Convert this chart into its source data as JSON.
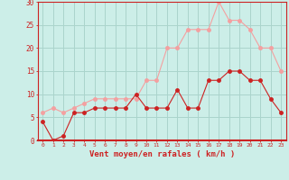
{
  "x": [
    0,
    1,
    2,
    3,
    4,
    5,
    6,
    7,
    8,
    9,
    10,
    11,
    12,
    13,
    14,
    15,
    16,
    17,
    18,
    19,
    20,
    21,
    22,
    23
  ],
  "wind_avg": [
    4,
    0,
    1,
    6,
    6,
    7,
    7,
    7,
    7,
    10,
    7,
    7,
    7,
    11,
    7,
    7,
    13,
    13,
    15,
    15,
    13,
    13,
    9,
    6
  ],
  "wind_gust": [
    6,
    7,
    6,
    7,
    8,
    9,
    9,
    9,
    9,
    9,
    13,
    13,
    20,
    20,
    24,
    24,
    24,
    30,
    26,
    26,
    24,
    20,
    20,
    15
  ],
  "avg_color": "#cc2222",
  "gust_color": "#f4a0a0",
  "bg_color": "#cceee8",
  "grid_color": "#aad4cc",
  "axis_color": "#cc2222",
  "xlabel": "Vent moyen/en rafales ( km/h )",
  "ylim": [
    0,
    30
  ],
  "yticks": [
    0,
    5,
    10,
    15,
    20,
    25,
    30
  ],
  "xticks": [
    0,
    1,
    2,
    3,
    4,
    5,
    6,
    7,
    8,
    9,
    10,
    11,
    12,
    13,
    14,
    15,
    16,
    17,
    18,
    19,
    20,
    21,
    22,
    23
  ]
}
